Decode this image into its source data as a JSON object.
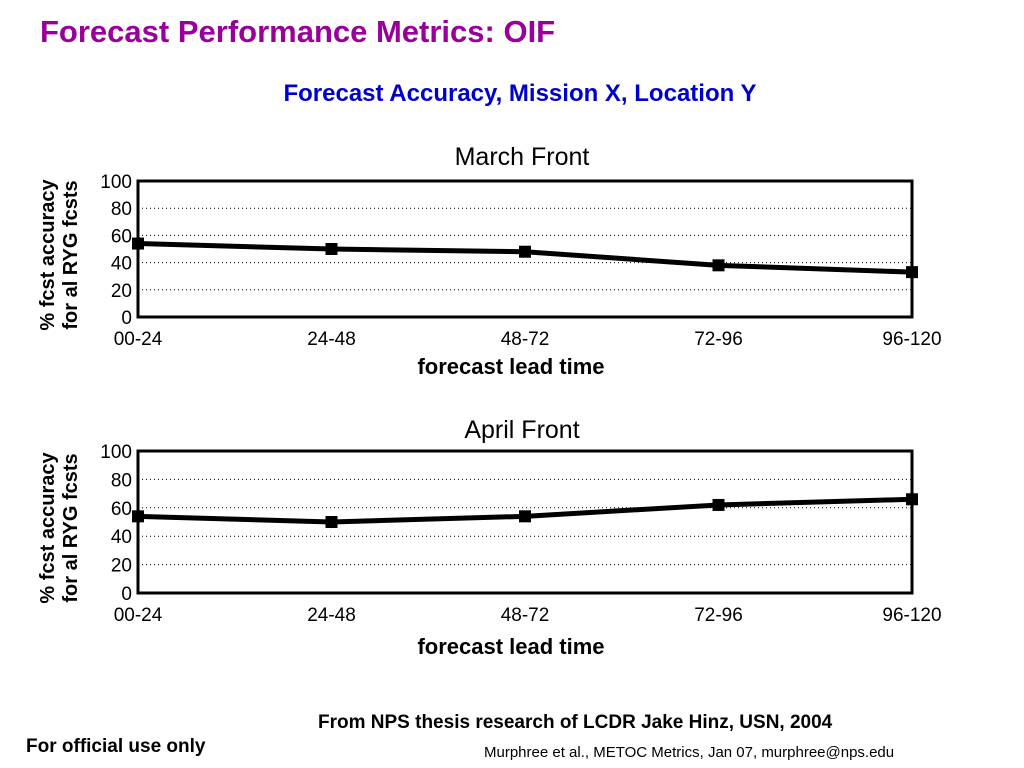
{
  "slide": {
    "title": "Forecast Performance Metrics: OIF",
    "subtitle": "Forecast Accuracy, Mission  X, Location Y",
    "credit": "From NPS thesis research of LCDR Jake Hinz, USN, 2004",
    "official_notice": "For official use only",
    "footer": "Murphree et al., METOC Metrics, Jan 07, murphree@nps.edu"
  },
  "chart_data": [
    {
      "type": "line",
      "title": "March Front",
      "xlabel": "forecast lead time",
      "ylabel": [
        "% fcst accuracy",
        "for al RYG fcsts"
      ],
      "categories": [
        "00-24",
        "24-48",
        "48-72",
        "72-96",
        "96-120"
      ],
      "series": [
        {
          "values": [
            54,
            50,
            48,
            38,
            33
          ]
        }
      ],
      "ylim": [
        0,
        100
      ],
      "yticks": [
        0,
        20,
        40,
        60,
        80,
        100
      ],
      "grid": "horizontal dotted",
      "color": "#000000"
    },
    {
      "type": "line",
      "title": "April Front",
      "xlabel": "forecast lead time",
      "ylabel": [
        "% fcst accuracy",
        "for al RYG fcsts"
      ],
      "categories": [
        "00-24",
        "24-48",
        "48-72",
        "72-96",
        "96-120"
      ],
      "series": [
        {
          "values": [
            54,
            50,
            54,
            62,
            66
          ]
        }
      ],
      "ylim": [
        0,
        100
      ],
      "yticks": [
        0,
        20,
        40,
        60,
        80,
        100
      ],
      "grid": "horizontal dotted",
      "color": "#000000"
    }
  ]
}
